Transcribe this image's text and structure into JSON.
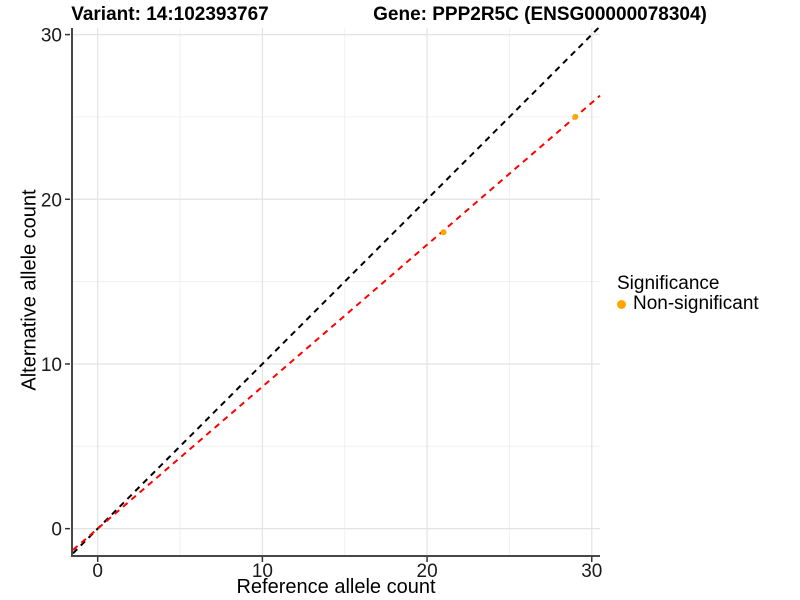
{
  "chart_data": {
    "type": "scatter",
    "title_variant": "Variant: 14:102393767",
    "title_gene": "Gene: PPP2R5C (ENSG00000078304)",
    "xlabel": "Reference allele count",
    "ylabel": "Alternative allele count",
    "x_ticks": [
      0,
      10,
      20,
      30
    ],
    "y_ticks": [
      0,
      10,
      20,
      30
    ],
    "x_minor_ticks": [
      5,
      15,
      25
    ],
    "y_minor_ticks": [
      5,
      15,
      25
    ],
    "xlim": [
      -1.5,
      30.5
    ],
    "ylim": [
      -1.6,
      30.4
    ],
    "grid": true,
    "legend_position": "right",
    "points": [
      {
        "x": 21,
        "y": 18,
        "series": "Non-significant"
      },
      {
        "x": 29,
        "y": 25,
        "series": "Non-significant"
      }
    ],
    "point_radius": 3,
    "lines": [
      {
        "name": "identity",
        "slope": 1.0,
        "intercept": 0,
        "color": "#000000",
        "style": "dashed"
      },
      {
        "name": "fit",
        "slope": 0.862,
        "intercept": 0,
        "color": "#ff0000",
        "style": "dashed"
      }
    ],
    "legend": {
      "title": "Significance",
      "items": [
        {
          "label": "Non-significant",
          "color": "#FFA500"
        }
      ]
    },
    "colors": {
      "point": "#FFA500",
      "grid_major": "#e3e3e3",
      "grid_minor": "#f0f0f0",
      "axis_line": "#474747",
      "tick_mark": "#333333",
      "tick_label": "#1a1a1a"
    }
  }
}
